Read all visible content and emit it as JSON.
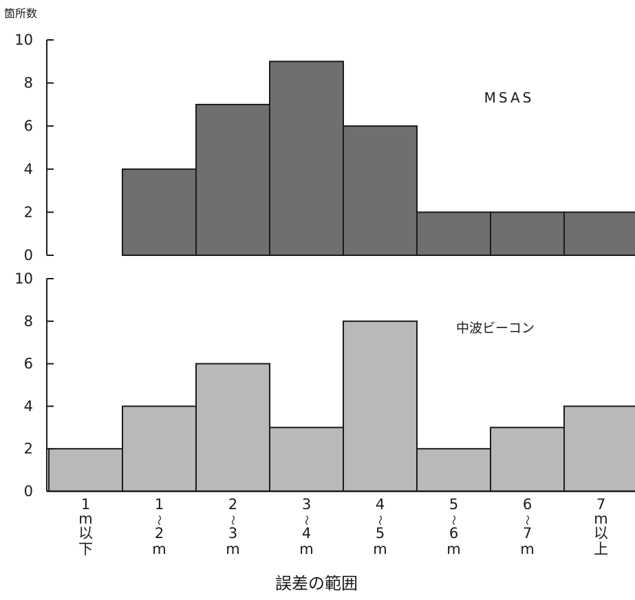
{
  "chart_data": [
    {
      "type": "bar",
      "title": "MSAS",
      "ylabel": "箇所数",
      "ylim": [
        0,
        10
      ],
      "yticks": [
        0,
        2,
        4,
        6,
        8,
        10
      ],
      "categories": [
        "1m以下",
        "1〜2m",
        "2〜3m",
        "3〜4m",
        "4〜5m",
        "5〜6m",
        "6〜7m",
        "7m以上"
      ],
      "values": [
        0,
        4,
        7,
        9,
        6,
        2,
        2,
        2
      ],
      "bar_color": "#6f6f6f"
    },
    {
      "type": "bar",
      "title": "中波ビーコン",
      "ylim": [
        0,
        10
      ],
      "yticks": [
        0,
        2,
        4,
        6,
        8,
        10
      ],
      "categories": [
        "1m以下",
        "1〜2m",
        "2〜3m",
        "3〜4m",
        "4〜5m",
        "5〜6m",
        "6〜7m",
        "7m以上"
      ],
      "values": [
        2,
        4,
        6,
        3,
        8,
        2,
        3,
        4
      ],
      "bar_color": "#b9b9b9"
    }
  ],
  "x_tick_labels": [
    [
      "1",
      "m",
      "以",
      "下"
    ],
    [
      "1",
      "〜",
      "2",
      "m"
    ],
    [
      "2",
      "〜",
      "3",
      "m"
    ],
    [
      "3",
      "〜",
      "4",
      "m"
    ],
    [
      "4",
      "〜",
      "5",
      "m"
    ],
    [
      "5",
      "〜",
      "6",
      "m"
    ],
    [
      "6",
      "〜",
      "7",
      "m"
    ],
    [
      "7",
      "m",
      "以",
      "上"
    ]
  ],
  "xlabel": "誤差の範囲",
  "colors": {
    "axis": "#1a1a1a",
    "bar_stroke": "#1a1a1a"
  }
}
